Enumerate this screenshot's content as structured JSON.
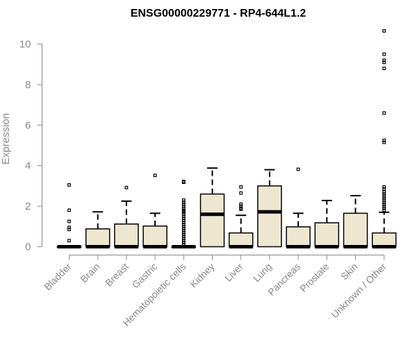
{
  "colors": {
    "box_fill": "#EEE7D0",
    "box_stroke": "#000000",
    "axis": "#888888",
    "tick_label": "#888888",
    "outlier": "#000000"
  },
  "chart_data": {
    "type": "boxplot",
    "title": "ENSG00000229771 - RP4-644L1.2",
    "xlabel": "",
    "ylabel": "Expression",
    "ylim": [
      0,
      10.8
    ],
    "yticks": [
      0,
      2,
      4,
      6,
      8,
      10
    ],
    "grid": false,
    "categories": [
      "Bladder",
      "Brain",
      "Breast",
      "Gastric",
      "Hematopoietic cells",
      "Kidney",
      "Liver",
      "Lung",
      "Pancreas",
      "Prostate",
      "Skin",
      "Unknown / Other"
    ],
    "boxes": [
      {
        "min": 0,
        "q1": 0,
        "median": 0,
        "q3": 0,
        "max": 0,
        "outliers": [
          3.05,
          1.8,
          1.25,
          0.95,
          0.85,
          0.3
        ]
      },
      {
        "min": 0,
        "q1": 0,
        "median": 0,
        "q3": 0.88,
        "max": 1.72,
        "outliers": []
      },
      {
        "min": 0,
        "q1": 0,
        "median": 0,
        "q3": 1.12,
        "max": 2.25,
        "outliers": [
          2.92
        ]
      },
      {
        "min": 0,
        "q1": 0,
        "median": 0,
        "q3": 1.02,
        "max": 1.65,
        "outliers": [
          3.52
        ]
      },
      {
        "min": 0,
        "q1": 0,
        "median": 0,
        "q3": 0,
        "max": 0,
        "outliers": [
          3.22,
          3.18,
          2.3,
          2.2,
          2.1,
          2.0,
          1.9,
          1.8,
          1.75,
          1.7,
          1.6,
          1.5,
          1.4,
          1.3,
          1.2,
          1.1,
          1.0,
          0.9,
          0.8,
          0.7,
          0.6,
          0.5,
          0.4,
          0.3,
          0.2,
          0.1
        ]
      },
      {
        "min": 0,
        "q1": 0,
        "median": 1.6,
        "q3": 2.6,
        "max": 3.88,
        "outliers": []
      },
      {
        "min": 0,
        "q1": 0,
        "median": 0,
        "q3": 0.68,
        "max": 1.55,
        "outliers": [
          2.95,
          2.65,
          2.1,
          2.0,
          1.9,
          1.85
        ]
      },
      {
        "min": 0,
        "q1": 0,
        "median": 1.72,
        "q3": 3.0,
        "max": 3.8,
        "outliers": []
      },
      {
        "min": 0,
        "q1": 0,
        "median": 0,
        "q3": 0.98,
        "max": 1.65,
        "outliers": [
          3.82
        ]
      },
      {
        "min": 0,
        "q1": 0,
        "median": 0,
        "q3": 1.18,
        "max": 2.28,
        "outliers": []
      },
      {
        "min": 0,
        "q1": 0,
        "median": 0,
        "q3": 1.65,
        "max": 2.52,
        "outliers": []
      },
      {
        "min": 0,
        "q1": 0,
        "median": 0,
        "q3": 0.68,
        "max": 1.7,
        "outliers": [
          10.65,
          9.5,
          9.2,
          9.1,
          8.8,
          6.6,
          5.25,
          5.15,
          2.95,
          2.85,
          2.7,
          2.6,
          2.5,
          2.4,
          2.3,
          2.2,
          2.1,
          2.0,
          1.9,
          1.8
        ]
      }
    ]
  }
}
